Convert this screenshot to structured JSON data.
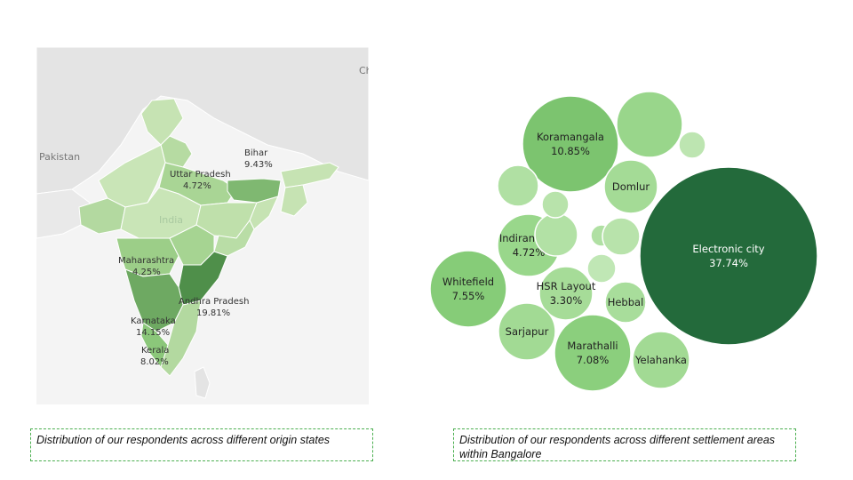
{
  "map": {
    "background_labels": {
      "pakistan": "Pakistan",
      "india": "India",
      "china_partial": "Ch"
    },
    "colors": {
      "land": "#e6e6e6",
      "border": "#ffffff",
      "light": "#c6e3b3",
      "medium": "#8fc87a",
      "dark": "#5a9e52"
    },
    "state_labels": [
      {
        "name": "Bihar",
        "value": "9.43%"
      },
      {
        "name": "Uttar Pradesh",
        "value": "4.72%"
      },
      {
        "name": "Maharashtra",
        "value": "4.25%"
      },
      {
        "name": "Andhra Pradesh",
        "value": "19.81%"
      },
      {
        "name": "Karnataka",
        "value": "14.15%"
      },
      {
        "name": "Kerala",
        "value": "8.02%"
      }
    ]
  },
  "chart_data": {
    "type": "bubble",
    "series": [
      {
        "label": "Electronic city",
        "value": 37.74,
        "display": "37.74%",
        "color": "#236a3b",
        "text_color": "#ffffff"
      },
      {
        "label": "Koramangala",
        "value": 10.85,
        "display": "10.85%",
        "color": "#7cc46f",
        "text_color": "#222222"
      },
      {
        "label": "Whitefield",
        "value": 7.55,
        "display": "7.55%",
        "color": "#86cc78",
        "text_color": "#222222"
      },
      {
        "label": "Marathalli",
        "value": 7.08,
        "display": "7.08%",
        "color": "#8bcf7d",
        "text_color": "#222222"
      },
      {
        "label": "Indiranagar",
        "value": 4.72,
        "display": "4.72%",
        "color": "#99d78b",
        "text_color": "#222222"
      },
      {
        "label": "HSR Layout",
        "value": 3.3,
        "display": "3.30%",
        "color": "#a6dc98",
        "text_color": "#222222"
      },
      {
        "label": "Domlur",
        "value": null,
        "display": "",
        "color": "#a4db96",
        "text_color": "#222222"
      },
      {
        "label": "Sarjapur",
        "value": null,
        "display": "",
        "color": "#a2da94",
        "text_color": "#222222"
      },
      {
        "label": "Hebbal",
        "value": null,
        "display": "",
        "color": "#a8dd9b",
        "text_color": "#222222"
      },
      {
        "label": "Yelahanka",
        "value": null,
        "display": "",
        "color": "#a2da94",
        "text_color": "#222222"
      },
      {
        "label": "",
        "value": null,
        "display": "",
        "color": "#99d68b",
        "text_color": "#222222"
      },
      {
        "label": "",
        "value": null,
        "display": "",
        "color": "#b2e1a5",
        "text_color": "#222222"
      },
      {
        "label": "",
        "value": null,
        "display": "",
        "color": "#b0e0a3",
        "text_color": "#222222"
      },
      {
        "label": "",
        "value": null,
        "display": "",
        "color": "#b8e3ab",
        "text_color": "#222222"
      },
      {
        "label": "",
        "value": null,
        "display": "",
        "color": "#b0e0a3",
        "text_color": "#222222"
      },
      {
        "label": "",
        "value": null,
        "display": "",
        "color": "#b8e3ab",
        "text_color": "#222222"
      },
      {
        "label": "",
        "value": null,
        "display": "",
        "color": "#c0e7b5",
        "text_color": "#222222"
      },
      {
        "label": "",
        "value": null,
        "display": "",
        "color": "#bde5b1",
        "text_color": "#222222"
      }
    ]
  },
  "captions": {
    "left": "Distribution of our respondents across different origin states",
    "right": "Distribution of our respondents across different settlement areas within Bangalore"
  }
}
